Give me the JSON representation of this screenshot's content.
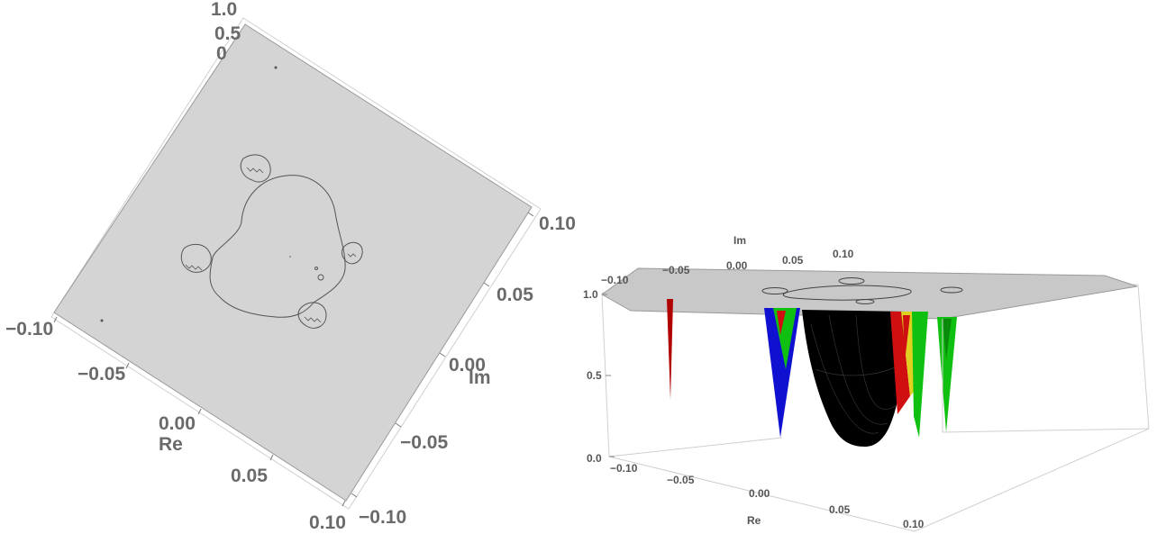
{
  "chart_data": [
    {
      "type": "surface3d",
      "view": "top-down rotated",
      "xlabel": "Re",
      "ylabel": "Im",
      "xlim": [
        -0.1,
        0.1
      ],
      "ylim": [
        -0.1,
        0.1
      ],
      "zlim": [
        0.0,
        1.0
      ],
      "x_ticks": [
        "−0.10",
        "−0.05",
        "0.00",
        "0.05",
        "0.10"
      ],
      "y_ticks": [
        "−0.10",
        "−0.05",
        "0.00",
        "0.05",
        "0.10"
      ],
      "z_ticks_partial": [
        "1.0",
        "0.5",
        "0"
      ],
      "plateau_color": "#d4d4d4",
      "contour_color": "#555555"
    },
    {
      "type": "surface3d",
      "view": "perspective",
      "xlabel": "Re",
      "ylabel": "Im",
      "xlim": [
        -0.1,
        0.1
      ],
      "ylim": [
        -0.1,
        0.1
      ],
      "zlim": [
        0.0,
        1.0
      ],
      "x_ticks": [
        "−0.10",
        "−0.05",
        "0.00",
        "0.05",
        "0.10"
      ],
      "y_ticks": [
        "−0.10",
        "−0.05",
        "0.00",
        "0.05",
        "0.10"
      ],
      "z_ticks": [
        "0.0",
        "0.5",
        "1.0"
      ],
      "surface_colors": {
        "plateau": "#c8c8c8",
        "basin": "#000000",
        "red": "#d01010",
        "green": "#10c010",
        "blue": "#1010d0",
        "yellow": "#e0d020"
      }
    }
  ]
}
